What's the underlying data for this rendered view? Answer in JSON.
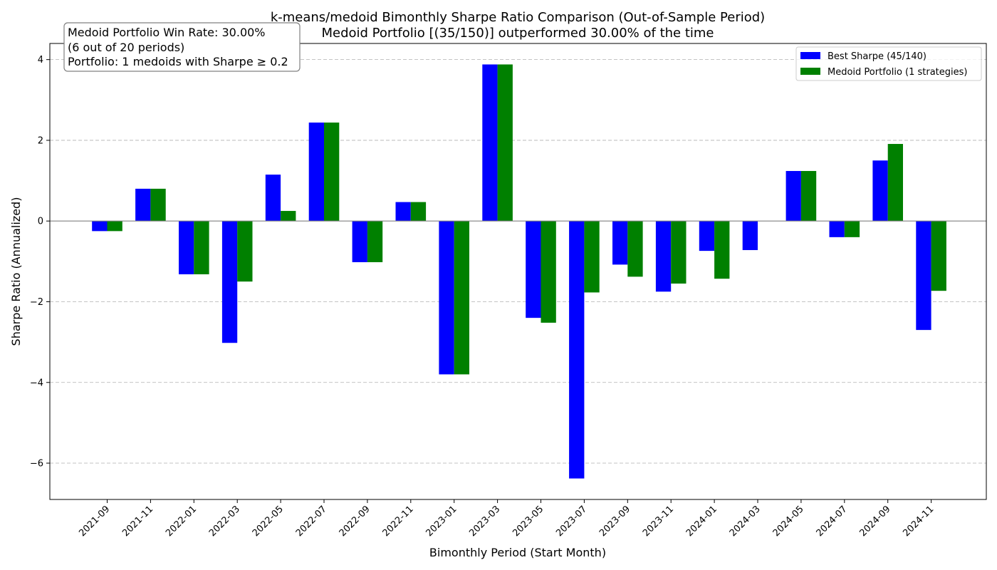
{
  "chart_data": {
    "type": "bar",
    "title": "k-means/medoid Bimonthly Sharpe Ratio Comparison (Out-of-Sample Period)",
    "subtitle": "Medoid Portfolio [(35/150)] outperformed 30.00% of the time",
    "xlabel": "Bimonthly Period (Start Month)",
    "ylabel": "Sharpe Ratio (Annualized)",
    "ylim": [
      -6.9,
      4.4
    ],
    "yticks": [
      -6,
      -4,
      -2,
      0,
      2,
      4
    ],
    "ytick_labels": [
      "−6",
      "−4",
      "−2",
      "0",
      "2",
      "4"
    ],
    "grid": "y dashed",
    "legend_position": "top-right",
    "categories": [
      "2021-09",
      "2021-11",
      "2022-01",
      "2022-03",
      "2022-05",
      "2022-07",
      "2022-09",
      "2022-11",
      "2023-01",
      "2023-03",
      "2023-05",
      "2023-07",
      "2023-09",
      "2023-11",
      "2024-01",
      "2024-03",
      "2024-05",
      "2024-07",
      "2024-09",
      "2024-11"
    ],
    "series": [
      {
        "name": "Best Sharpe (45/140)",
        "color": "#0000ff",
        "values": [
          -0.25,
          0.8,
          -1.32,
          -3.02,
          1.15,
          2.44,
          -1.02,
          0.47,
          -3.8,
          3.88,
          -2.4,
          -6.38,
          -1.08,
          -1.75,
          -0.74,
          -0.72,
          1.24,
          -0.4,
          1.5,
          -2.7
        ]
      },
      {
        "name": "Medoid Portfolio (1 strategies)",
        "color": "#008000",
        "values": [
          -0.25,
          0.8,
          -1.32,
          -1.5,
          0.25,
          2.44,
          -1.02,
          0.47,
          -3.8,
          3.88,
          -2.52,
          -1.77,
          -1.38,
          -1.55,
          -1.43,
          0.0,
          1.24,
          -0.4,
          1.91,
          -1.73
        ]
      }
    ],
    "annotation": {
      "lines": [
        "Medoid Portfolio Win Rate: 30.00%",
        "(6 out of 20 periods)",
        "Portfolio: 1 medoids with Sharpe ≥ 0.2"
      ]
    }
  }
}
